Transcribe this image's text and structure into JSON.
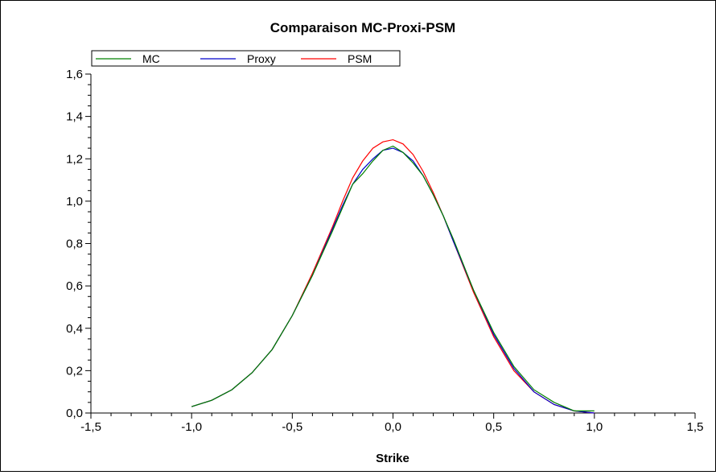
{
  "chart_data": {
    "type": "line",
    "title": "Comparaison MC-Proxi-PSM",
    "xlabel": "Strike",
    "ylabel": "",
    "xlim": [
      -1.5,
      1.5
    ],
    "ylim": [
      0.0,
      1.6
    ],
    "grid": false,
    "legend_position": "top-left",
    "x_ticks": [
      "-1,5",
      "-1,0",
      "-0,5",
      "0,0",
      "0,5",
      "1,0",
      "1,5"
    ],
    "x_tick_values": [
      -1.5,
      -1.0,
      -0.5,
      0.0,
      0.5,
      1.0,
      1.5
    ],
    "y_ticks": [
      "0,0",
      "0,2",
      "0,4",
      "0,6",
      "0,8",
      "1,0",
      "1,2",
      "1,4",
      "1,6"
    ],
    "y_tick_values": [
      0.0,
      0.2,
      0.4,
      0.6,
      0.8,
      1.0,
      1.2,
      1.4,
      1.6
    ],
    "series": [
      {
        "name": "MC",
        "color": "#008000",
        "x": [
          -1.0,
          -0.9,
          -0.8,
          -0.7,
          -0.6,
          -0.5,
          -0.4,
          -0.3,
          -0.25,
          -0.2,
          -0.15,
          -0.1,
          -0.05,
          0.0,
          0.05,
          0.1,
          0.15,
          0.2,
          0.25,
          0.3,
          0.4,
          0.5,
          0.6,
          0.7,
          0.8,
          0.9,
          1.0
        ],
        "y": [
          0.03,
          0.06,
          0.11,
          0.19,
          0.3,
          0.46,
          0.65,
          0.86,
          0.97,
          1.08,
          1.13,
          1.19,
          1.24,
          1.26,
          1.23,
          1.18,
          1.12,
          1.03,
          0.93,
          0.82,
          0.58,
          0.38,
          0.22,
          0.11,
          0.05,
          0.01,
          0.01
        ]
      },
      {
        "name": "Proxy",
        "color": "#0000cc",
        "x": [
          -1.0,
          -0.9,
          -0.8,
          -0.7,
          -0.6,
          -0.5,
          -0.4,
          -0.3,
          -0.25,
          -0.2,
          -0.15,
          -0.1,
          -0.05,
          0.0,
          0.05,
          0.1,
          0.15,
          0.2,
          0.25,
          0.3,
          0.4,
          0.5,
          0.6,
          0.7,
          0.8,
          0.9,
          1.0
        ],
        "y": [
          0.03,
          0.06,
          0.11,
          0.19,
          0.3,
          0.46,
          0.65,
          0.87,
          0.98,
          1.08,
          1.15,
          1.2,
          1.24,
          1.25,
          1.23,
          1.19,
          1.12,
          1.03,
          0.93,
          0.81,
          0.58,
          0.37,
          0.21,
          0.1,
          0.04,
          0.01,
          0.0
        ]
      },
      {
        "name": "PSM",
        "color": "#ff0000",
        "x": [
          -1.0,
          -0.9,
          -0.8,
          -0.7,
          -0.6,
          -0.5,
          -0.4,
          -0.3,
          -0.25,
          -0.2,
          -0.15,
          -0.1,
          -0.05,
          0.0,
          0.05,
          0.1,
          0.15,
          0.2,
          0.25,
          0.3,
          0.4,
          0.5,
          0.6,
          0.7,
          0.8,
          0.9,
          1.0
        ],
        "y": [
          0.03,
          0.06,
          0.11,
          0.19,
          0.3,
          0.46,
          0.66,
          0.88,
          1.0,
          1.11,
          1.19,
          1.25,
          1.28,
          1.29,
          1.27,
          1.22,
          1.14,
          1.04,
          0.93,
          0.81,
          0.57,
          0.36,
          0.2,
          0.1,
          0.04,
          0.01,
          0.0
        ]
      }
    ]
  }
}
